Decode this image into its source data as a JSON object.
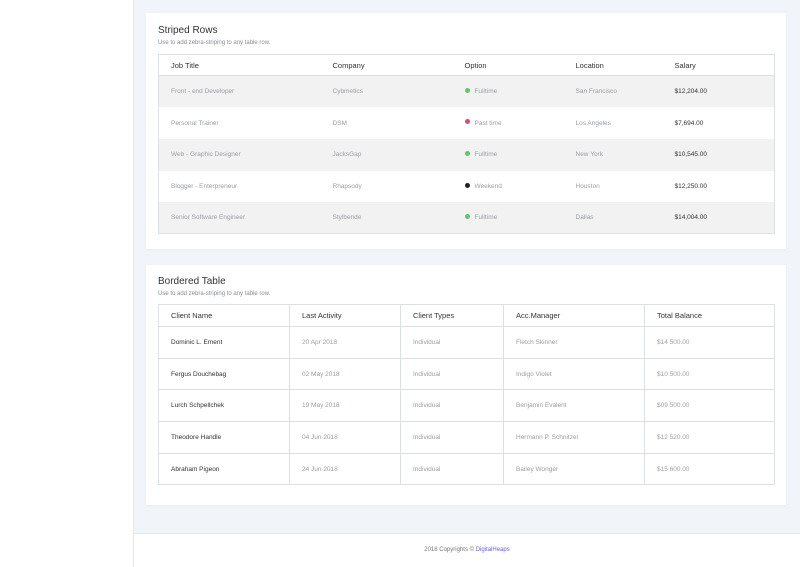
{
  "striped": {
    "title": "Striped Rows",
    "subtitle": "Use to add zebra-striping to any table row.",
    "headers": [
      "Job Title",
      "Company",
      "Option",
      "Location",
      "Salary"
    ],
    "rows": [
      {
        "job": "Front - end Developer",
        "company": "Cybmetics",
        "option": "Fulltime",
        "option_color": "#5cc96b",
        "location": "San Francisco",
        "salary": "$12,204.00"
      },
      {
        "job": "Personal Trainer",
        "company": "DSM",
        "option": "Past time",
        "option_color": "#e5466b",
        "location": "Los Angeles",
        "salary": "$7,694.00"
      },
      {
        "job": "Web - Graphic Designer",
        "company": "JacksGap",
        "option": "Fulltime",
        "option_color": "#5cc96b",
        "location": "New York",
        "salary": "$10,545.00"
      },
      {
        "job": "Blogger - Enterpreneur",
        "company": "Rhapsody",
        "option": "Weekend",
        "option_color": "#222222",
        "location": "Houston",
        "salary": "$12,250.00"
      },
      {
        "job": "Senior Software Engineer",
        "company": "Stylbende",
        "option": "Fulltime",
        "option_color": "#5cc96b",
        "location": "Dallas",
        "salary": "$14,004.00"
      }
    ]
  },
  "bordered": {
    "title": "Bordered Table",
    "subtitle": "Use to add zebra-striping to any table row.",
    "headers": [
      "Client Name",
      "Last Activity",
      "Client Types",
      "Acc.Manager",
      "Total Balance"
    ],
    "rows": [
      {
        "name": "Dominic L. Ement",
        "activity": "20 Apr 2018",
        "type": "Individual",
        "manager": "Fletch Skinner",
        "balance": "$14 500.00"
      },
      {
        "name": "Fergus Douchebag",
        "activity": "02 May 2018",
        "type": "Individual",
        "manager": "Indigo Violet",
        "balance": "$10 500.00"
      },
      {
        "name": "Lurch Schpellchek",
        "activity": "19 May 2018",
        "type": "Individual",
        "manager": "Benjamin Evalent",
        "balance": "$09 500.00"
      },
      {
        "name": "Theodore Handle",
        "activity": "04 Jun 2018",
        "type": "Individual",
        "manager": "Hermann P. Schnitzel",
        "balance": "$12 520.00"
      },
      {
        "name": "Abraham Pigeon",
        "activity": "24 Jun 2018",
        "type": "Individual",
        "manager": "Bailey Wonger",
        "balance": "$15 600.00"
      }
    ]
  },
  "footer": {
    "text": "2018 Copyrights ©",
    "brand": "DigitalHeaps"
  },
  "colors": {
    "brand": "#6a5af9",
    "fulltime": "#5cc96b",
    "part_time": "#e5466b",
    "weekend": "#222222"
  }
}
